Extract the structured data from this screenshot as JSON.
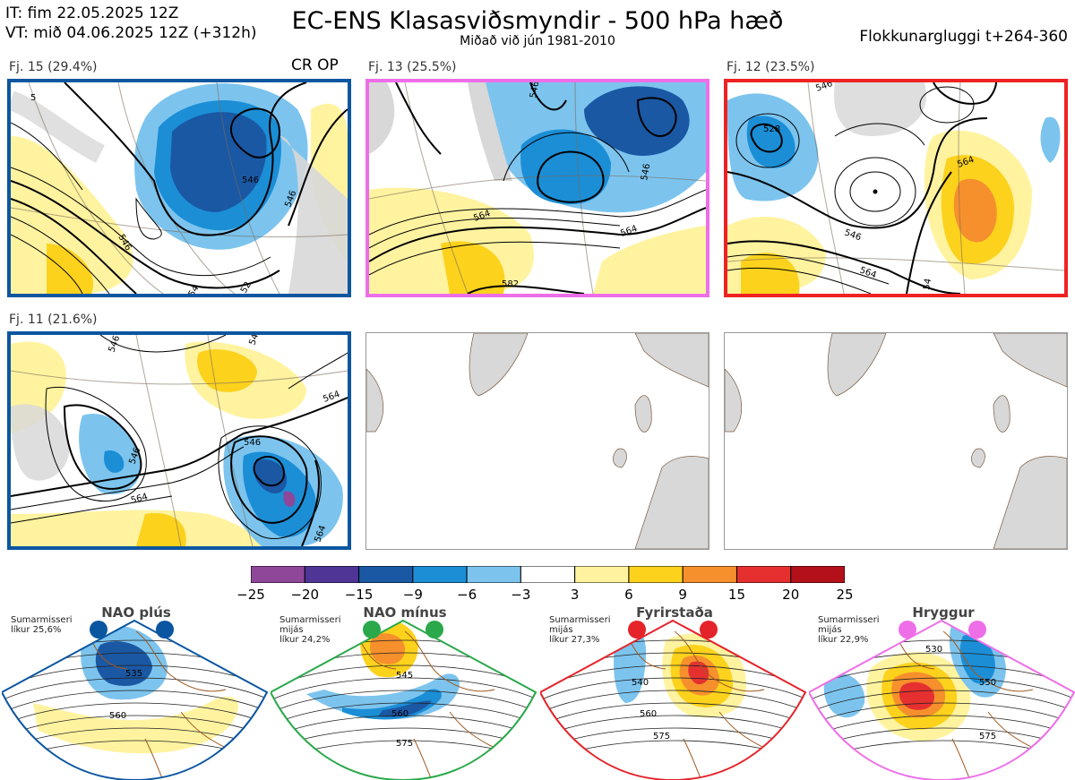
{
  "header": {
    "it_line": "IT: fim 22.05.2025 12Z",
    "vt_line": "VT: mið 04.06.2025 12Z  (+312h)",
    "title": "EC-ENS Klasasviðsmyndir - 500 hPa hæð",
    "subtitle": "Miðað við jún 1981-2010",
    "window": "Flokkunargluggi t+264-360"
  },
  "clusters": [
    {
      "label": "Fj. 15 (29.4%)",
      "tag": "CR OP",
      "border": "#0b56a0",
      "contours": [
        "546",
        "546",
        "546",
        "5",
        "54",
        "52"
      ]
    },
    {
      "label": "Fj. 13 (25.5%)",
      "tag": "",
      "border": "#ee6ee8",
      "contours": [
        "564",
        "582",
        "546",
        "564",
        "546"
      ]
    },
    {
      "label": "Fj. 12 (23.5%)",
      "tag": "",
      "border": "#ee2222",
      "contours": [
        "528",
        "564",
        "546",
        "564",
        "54",
        "546"
      ]
    },
    {
      "label": "Fj. 11 (21.6%)",
      "tag": "",
      "border": "#0b56a0",
      "contours": [
        "546",
        "564",
        "564",
        "546",
        "564",
        "546",
        "546"
      ]
    }
  ],
  "chart_data": {
    "type": "heatmap",
    "title": "EC-ENS Klasasviðsmyndir - 500 hPa hæð",
    "colorbar": {
      "ticks": [
        "−25",
        "−20",
        "−15",
        "−9",
        "−6",
        "−3",
        "3",
        "6",
        "9",
        "15",
        "20",
        "25"
      ],
      "colors": [
        "#8e4799",
        "#4e3596",
        "#1a58a4",
        "#1b8ed6",
        "#7cc4ee",
        "#ffffff",
        "#fff3a0",
        "#fcd21d",
        "#f6902d",
        "#e63030",
        "#b3101a"
      ]
    }
  },
  "regimes": [
    {
      "title": "NAO plús",
      "note1": "Sumarmisseri",
      "note2": "",
      "note3": "líkur 25,6%",
      "color": "#0b56a0",
      "contours": [
        "535",
        "560"
      ]
    },
    {
      "title": "NAO mínus",
      "note1": "Sumarmisseri",
      "note2": "mijás",
      "note3": "líkur 24,2%",
      "color": "#2aa84a",
      "contours": [
        "545",
        "560",
        "575"
      ]
    },
    {
      "title": "Fyrirstaða",
      "note1": "Sumarmisseri",
      "note2": "mijás",
      "note3": "líkur 27,3%",
      "color": "#e4232a",
      "contours": [
        "540",
        "560",
        "575"
      ]
    },
    {
      "title": "Hryggur",
      "note1": "Sumarmisseri",
      "note2": "mijás",
      "note3": "líkur 22,9%",
      "color": "#ee6ee8",
      "contours": [
        "530",
        "550",
        "575"
      ]
    }
  ]
}
